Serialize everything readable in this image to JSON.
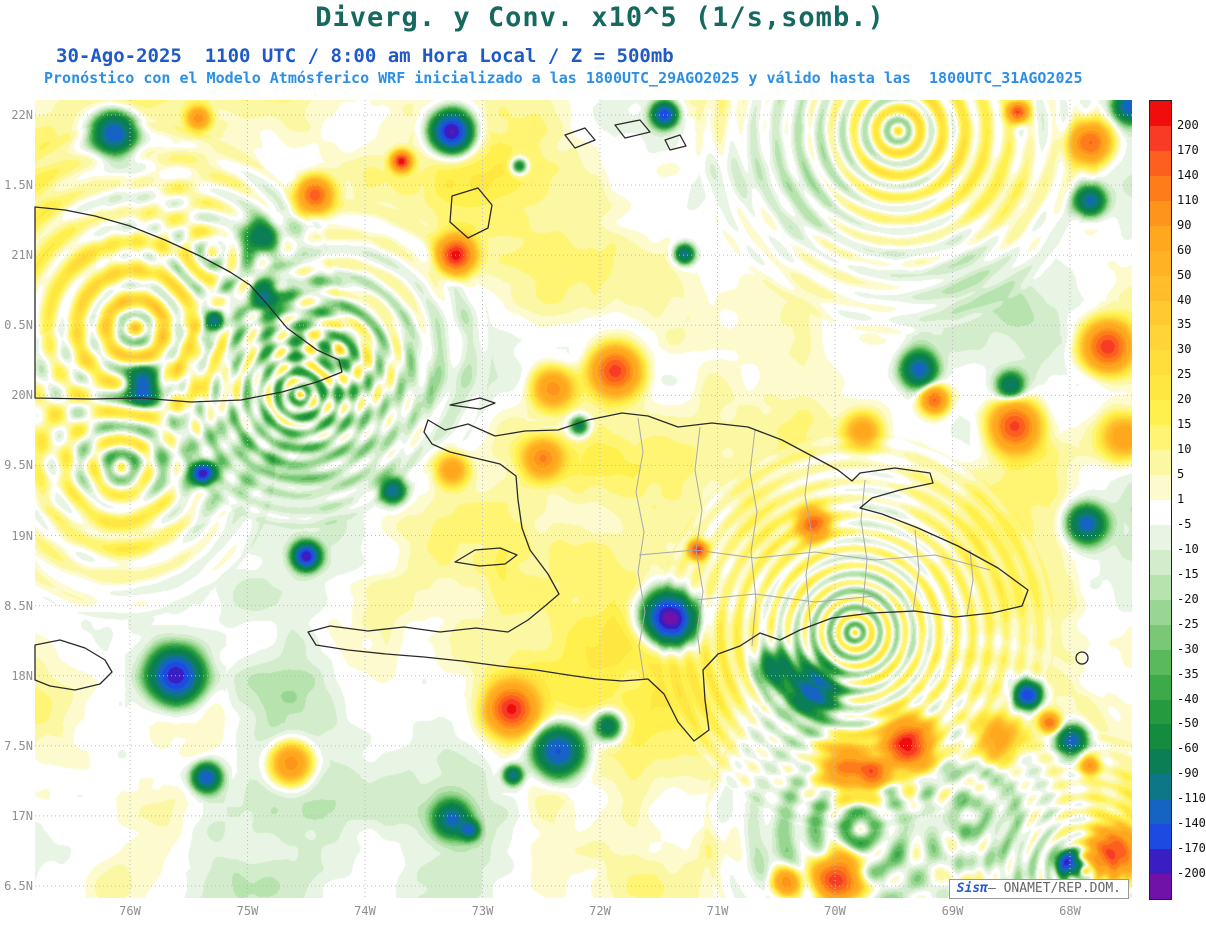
{
  "title": "Diverg. y Conv. x10^5 (1/s,somb.)",
  "subtitle_datetime": "30-Ago-2025  1100 UTC / 8:00 am Hora Local / Z = 500mb",
  "subtitle_model": "Pronóstico con el Modelo Atmósferico WRF inicializado a las 1800UTC_29AGO2025 y válido hasta las  1800UTC_31AGO2025",
  "watermark": {
    "brand": "Sisπ",
    "suffix": "– ONAMET/REP.DOM."
  },
  "colors": {
    "title": "#16695f",
    "subtitle_datetime": "#1f5ac8",
    "subtitle_model": "#2b8fe8",
    "watermark_brand": "#2657d8",
    "axis_label": "#8f8f8f"
  },
  "axes": {
    "lat_labels": [
      "22N",
      "1.5N",
      "21N",
      "0.5N",
      "20N",
      "9.5N",
      "19N",
      "8.5N",
      "18N",
      "7.5N",
      "17N",
      "6.5N"
    ],
    "lon_labels": [
      "76W",
      "75W",
      "74W",
      "73W",
      "72W",
      "71W",
      "70W",
      "69W",
      "68W"
    ]
  },
  "chart_data": {
    "type": "heatmap",
    "title": "Diverg. y Conv. x10^5 (1/s,somb.)",
    "field": "Divergence / Convergence x10^5 (1/s), shaded filled contours",
    "level": "Z = 500mb",
    "valid_time": "30-Ago-2025 1100 UTC / 8:00 am Hora Local",
    "model": "WRF",
    "initialized": "1800UTC_29AGO2025",
    "valid_until": "1800UTC_31AGO2025",
    "x_ticks_lon": [
      "76W",
      "75W",
      "74W",
      "73W",
      "72W",
      "71W",
      "70W",
      "69W",
      "68W"
    ],
    "y_ticks_lat": [
      "22N",
      "1.5N",
      "21N",
      "0.5N",
      "20N",
      "9.5N",
      "19N",
      "8.5N",
      "18N",
      "7.5N",
      "17N",
      "6.5N"
    ],
    "grid": true,
    "legend_position": "right-colorbar",
    "colorbar": {
      "levels": [
        200,
        170,
        140,
        110,
        90,
        60,
        50,
        40,
        35,
        30,
        25,
        20,
        15,
        10,
        5,
        1,
        -5,
        -10,
        -15,
        -20,
        -25,
        -30,
        -35,
        -40,
        -50,
        -60,
        -90,
        -110,
        -140,
        -170,
        -200
      ],
      "colors": [
        "#ef0d0d",
        "#f73b24",
        "#fc5f1e",
        "#fe7d1a",
        "#fe941c",
        "#ffa81e",
        "#ffb224",
        "#ffbd2a",
        "#ffc930",
        "#ffd436",
        "#ffde3b",
        "#ffe741",
        "#fff04d",
        "#fff573",
        "#fbf7a3",
        "#fdfbcd",
        "#ffffff",
        "#e9f5e4",
        "#d3edcc",
        "#b7e3ae",
        "#99d693",
        "#7ac877",
        "#5ab95c",
        "#3caa49",
        "#259a3f",
        "#148b3e",
        "#0b7e55",
        "#0d7787",
        "#1563c3",
        "#1d4be2",
        "#3a1ec2",
        "#7012a8"
      ]
    },
    "notes": "Filled-contour divergence/convergence field over the Hispaniola region; mostly weak divergence (pale yellow, 1 to 25) and weak convergence (light green, -5 to -25) with small intense convergence (blue) and divergence (orange/red) cores. Coastlines of eastern Cuba, Great Inagua, Turks & Caicos, Hispaniola, eastern Jamaica and Mona are overlaid, plus gray Dominican province boundaries."
  }
}
